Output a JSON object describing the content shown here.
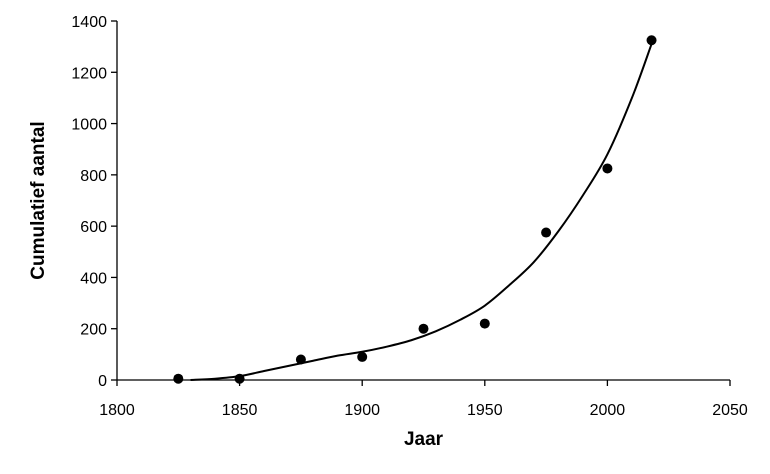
{
  "chart_data": {
    "type": "scatter",
    "title": "",
    "xlabel": "Jaar",
    "ylabel": "Cumulatief aantal",
    "xlim": [
      1800,
      2050
    ],
    "ylim": [
      0,
      1400
    ],
    "xticks": [
      1800,
      1850,
      1900,
      1950,
      2000,
      2050
    ],
    "yticks": [
      0,
      200,
      400,
      600,
      800,
      1000,
      1200,
      1400
    ],
    "grid": false,
    "legend": "none",
    "series": [
      {
        "marker": "circle",
        "color": "#000000",
        "points": [
          {
            "x": 1825,
            "y": 5
          },
          {
            "x": 1850,
            "y": 5
          },
          {
            "x": 1875,
            "y": 80
          },
          {
            "x": 1900,
            "y": 90
          },
          {
            "x": 1925,
            "y": 200
          },
          {
            "x": 1950,
            "y": 220
          },
          {
            "x": 1975,
            "y": 575
          },
          {
            "x": 2000,
            "y": 825
          },
          {
            "x": 2018,
            "y": 1325
          }
        ]
      }
    ],
    "trendline": {
      "color": "#000000",
      "points": [
        {
          "x": 1830,
          "y": 0
        },
        {
          "x": 1840,
          "y": 5
        },
        {
          "x": 1850,
          "y": 15
        },
        {
          "x": 1860,
          "y": 35
        },
        {
          "x": 1870,
          "y": 55
        },
        {
          "x": 1880,
          "y": 75
        },
        {
          "x": 1890,
          "y": 95
        },
        {
          "x": 1900,
          "y": 110
        },
        {
          "x": 1910,
          "y": 130
        },
        {
          "x": 1920,
          "y": 155
        },
        {
          "x": 1930,
          "y": 190
        },
        {
          "x": 1940,
          "y": 235
        },
        {
          "x": 1950,
          "y": 290
        },
        {
          "x": 1960,
          "y": 370
        },
        {
          "x": 1970,
          "y": 460
        },
        {
          "x": 1980,
          "y": 580
        },
        {
          "x": 1990,
          "y": 720
        },
        {
          "x": 2000,
          "y": 880
        },
        {
          "x": 2010,
          "y": 1100
        },
        {
          "x": 2018,
          "y": 1310
        }
      ]
    }
  }
}
